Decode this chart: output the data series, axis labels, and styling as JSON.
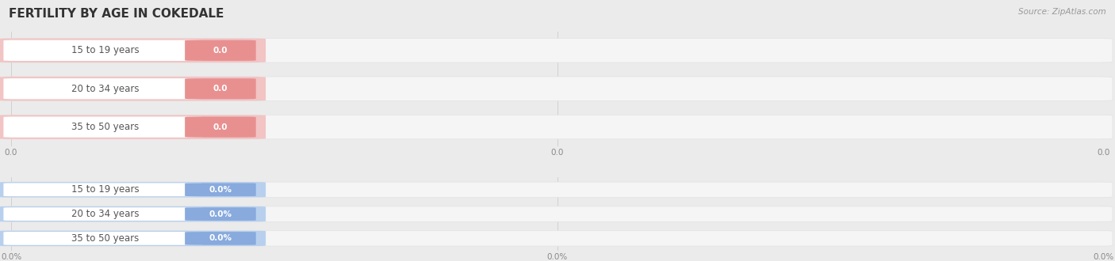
{
  "title": "FERTILITY BY AGE IN COKEDALE",
  "source": "Source: ZipAtlas.com",
  "top_section": {
    "categories": [
      "15 to 19 years",
      "20 to 34 years",
      "35 to 50 years"
    ],
    "values": [
      0.0,
      0.0,
      0.0
    ],
    "bar_color": "#f2c4c4",
    "badge_color": "#e89090",
    "value_format": "0.0",
    "x_tick_labels": [
      "0.0",
      "0.0",
      "0.0"
    ]
  },
  "bottom_section": {
    "categories": [
      "15 to 19 years",
      "20 to 34 years",
      "35 to 50 years"
    ],
    "values": [
      0.0,
      0.0,
      0.0
    ],
    "bar_color": "#b8d0ee",
    "badge_color": "#88aadd",
    "value_format": "0.0%",
    "x_tick_labels": [
      "0.0%",
      "0.0%",
      "0.0%"
    ]
  },
  "bg_color": "#ebebeb",
  "bar_bg_color": "#f5f5f5",
  "bar_height": 0.6,
  "title_fontsize": 11,
  "label_fontsize": 8.5,
  "tick_fontsize": 7.5,
  "source_fontsize": 7.5
}
